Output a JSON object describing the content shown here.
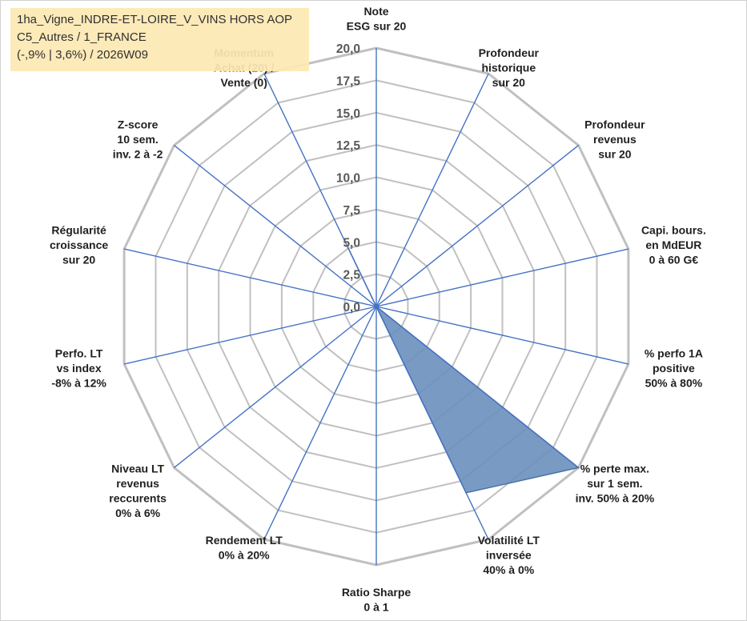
{
  "chart_data": {
    "type": "radar",
    "title_lines": [
      "1ha_Vigne_INDRE-ET-LOIRE_V_VINS HORS AOP",
      "C5_Autres / 1_FRANCE",
      "(-,9% | 3,6%) / 2026W09"
    ],
    "axes": [
      [
        "Note",
        "ESG sur 20"
      ],
      [
        "Profondeur",
        "historique",
        "sur 20"
      ],
      [
        "Profondeur",
        "revenus",
        "sur 20"
      ],
      [
        "Capi. bours.",
        "en MdEUR",
        "0 à 60 G€"
      ],
      [
        "% perfo 1A",
        "positive",
        "50% à 80%"
      ],
      [
        "% perte max.",
        "sur 1 sem.",
        "inv. 50% à 20%"
      ],
      [
        "Volatilité LT",
        "inversée",
        "40% à 0%"
      ],
      [
        "Ratio Sharpe",
        "0 à 1"
      ],
      [
        "Rendement LT",
        "0% à 20%"
      ],
      [
        "Niveau LT",
        "revenus",
        "reccurents",
        "0% à 6%"
      ],
      [
        "Perfo. LT",
        "vs index",
        "-8% à 12%"
      ],
      [
        "Régularité",
        "croissance",
        "sur 20"
      ],
      [
        "Z-score",
        "10 sem.",
        "inv. 2 à -2"
      ],
      [
        "Momentum",
        "Achat (20) /",
        "Vente (0)"
      ]
    ],
    "r_ticks": [
      "0,0",
      "2,5",
      "5,0",
      "7,5",
      "10,0",
      "12,5",
      "15,0",
      "17,5",
      "20,0"
    ],
    "r_range": [
      0,
      20
    ],
    "series": [
      {
        "values": [
          0,
          0,
          0,
          0,
          0,
          20,
          16,
          0,
          0,
          0,
          0,
          0,
          0,
          5
        ],
        "fill": "#6a8fbc",
        "stroke": "#4a72a6"
      }
    ],
    "colors": {
      "axis_spoke": "#4472c4",
      "gridline": "#c0c0c0",
      "tick_text": "#595959",
      "label_text": "#1f1f1f",
      "title_box": "#fde9b4"
    }
  }
}
